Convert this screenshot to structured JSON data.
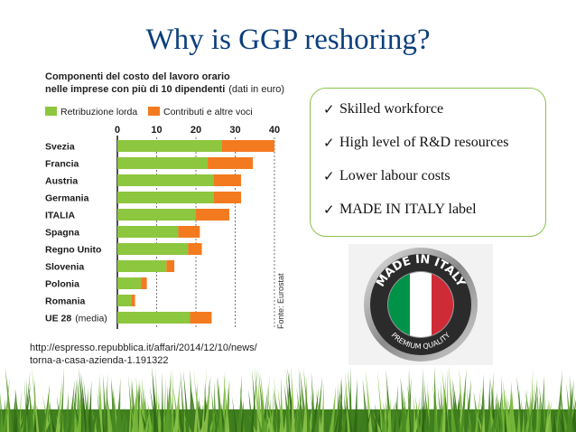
{
  "slide": {
    "title": "Why is GGP reshoring?",
    "bullets": [
      "Skilled workforce",
      "High level of R&D resources",
      "Lower labour costs",
      "MADE IN ITALY label"
    ],
    "source_line1": "http://espresso.repubblica.it/affari/2014/12/10/news/",
    "source_line2": "torna-a-casa-azienda-1.191322",
    "badge": {
      "top_text": "MADE IN ITALY",
      "bottom_text": "PREMIUM QUALITY",
      "flag_colors": [
        "#009246",
        "#ffffff",
        "#ce2b37"
      ]
    }
  },
  "chart_data": {
    "type": "bar",
    "stacked": true,
    "orientation": "horizontal",
    "title_line1": "Componenti del costo del lavoro orario",
    "title_line2_bold": "nelle imprese con più di 10 dipendenti",
    "title_line2_normal": "(dati in euro)",
    "categories": [
      "Svezia",
      "Francia",
      "Austria",
      "Germania",
      "ITALIA",
      "Spagna",
      "Regno Unito",
      "Slovenia",
      "Polonia",
      "Romania",
      "UE 28"
    ],
    "last_category_suffix": "(media)",
    "series": [
      {
        "name": "Retribuzione lorda",
        "color": "#8dc63f",
        "values": [
          26.5,
          23.0,
          24.5,
          24.5,
          20.0,
          15.5,
          18.0,
          12.5,
          6.0,
          3.5,
          18.5
        ]
      },
      {
        "name": "Contributi e altre voci",
        "color": "#f47a20",
        "values": [
          13.5,
          11.5,
          7.0,
          7.0,
          8.5,
          5.5,
          3.5,
          2.0,
          1.5,
          1.0,
          5.5
        ]
      }
    ],
    "xlim": [
      0,
      40
    ],
    "xticks": [
      "0",
      "10",
      "20",
      "30",
      "40"
    ],
    "source_label": "Fonte: Eurostat"
  }
}
